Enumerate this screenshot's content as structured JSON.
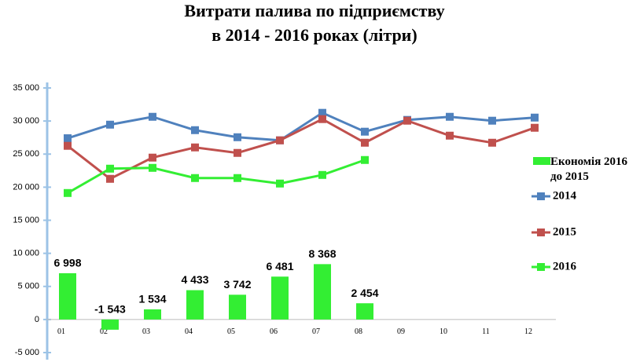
{
  "chart_data": {
    "type": "bar-line",
    "title": "Витрати палива по підприємству",
    "subtitle": "в 2014 - 2016 роках (літри)",
    "categories": [
      "01",
      "02",
      "03",
      "04",
      "05",
      "06",
      "07",
      "08",
      "09",
      "10",
      "11",
      "12"
    ],
    "ylim": [
      -5000,
      35000
    ],
    "yticks": [
      {
        "value": -5000,
        "label": "-5 000"
      },
      0,
      {
        "value": 5000,
        "label": "5 000"
      },
      {
        "value": 10000,
        "label": "10 000"
      },
      {
        "value": 15000,
        "label": "15 000"
      },
      {
        "value": 20000,
        "label": "20 000"
      },
      {
        "value": 25000,
        "label": "25 000"
      },
      {
        "value": 30000,
        "label": "30 000"
      },
      {
        "value": 35000,
        "label": "35 000"
      }
    ],
    "bar_series": {
      "name": "Економія 2016 до 2015",
      "color": "#33ee33",
      "values": [
        6998,
        -1543,
        1534,
        4433,
        3742,
        6481,
        8368,
        2454,
        null,
        null,
        null,
        null
      ],
      "value_labels": [
        "6 998",
        "-1 543",
        "1 534",
        "4 433",
        "3 742",
        "6 481",
        "8 368",
        "2 454",
        null,
        null,
        null,
        null
      ]
    },
    "series": [
      {
        "name": "2014",
        "color": "#4f81bd",
        "values": [
          27400,
          29450,
          30640,
          28620,
          27550,
          27080,
          31240,
          28390,
          30170,
          30640,
          30050,
          30520
        ]
      },
      {
        "name": "2015",
        "color": "#c0504d",
        "values": [
          26250,
          21260,
          24470,
          26010,
          25180,
          27080,
          30290,
          26720,
          30050,
          27790,
          26720,
          28980
        ]
      },
      {
        "name": "2016",
        "color": "#33ee33",
        "values": [
          19120,
          22800,
          22920,
          21380,
          21380,
          20550,
          21850,
          24110,
          null,
          null,
          null,
          null
        ]
      }
    ]
  }
}
